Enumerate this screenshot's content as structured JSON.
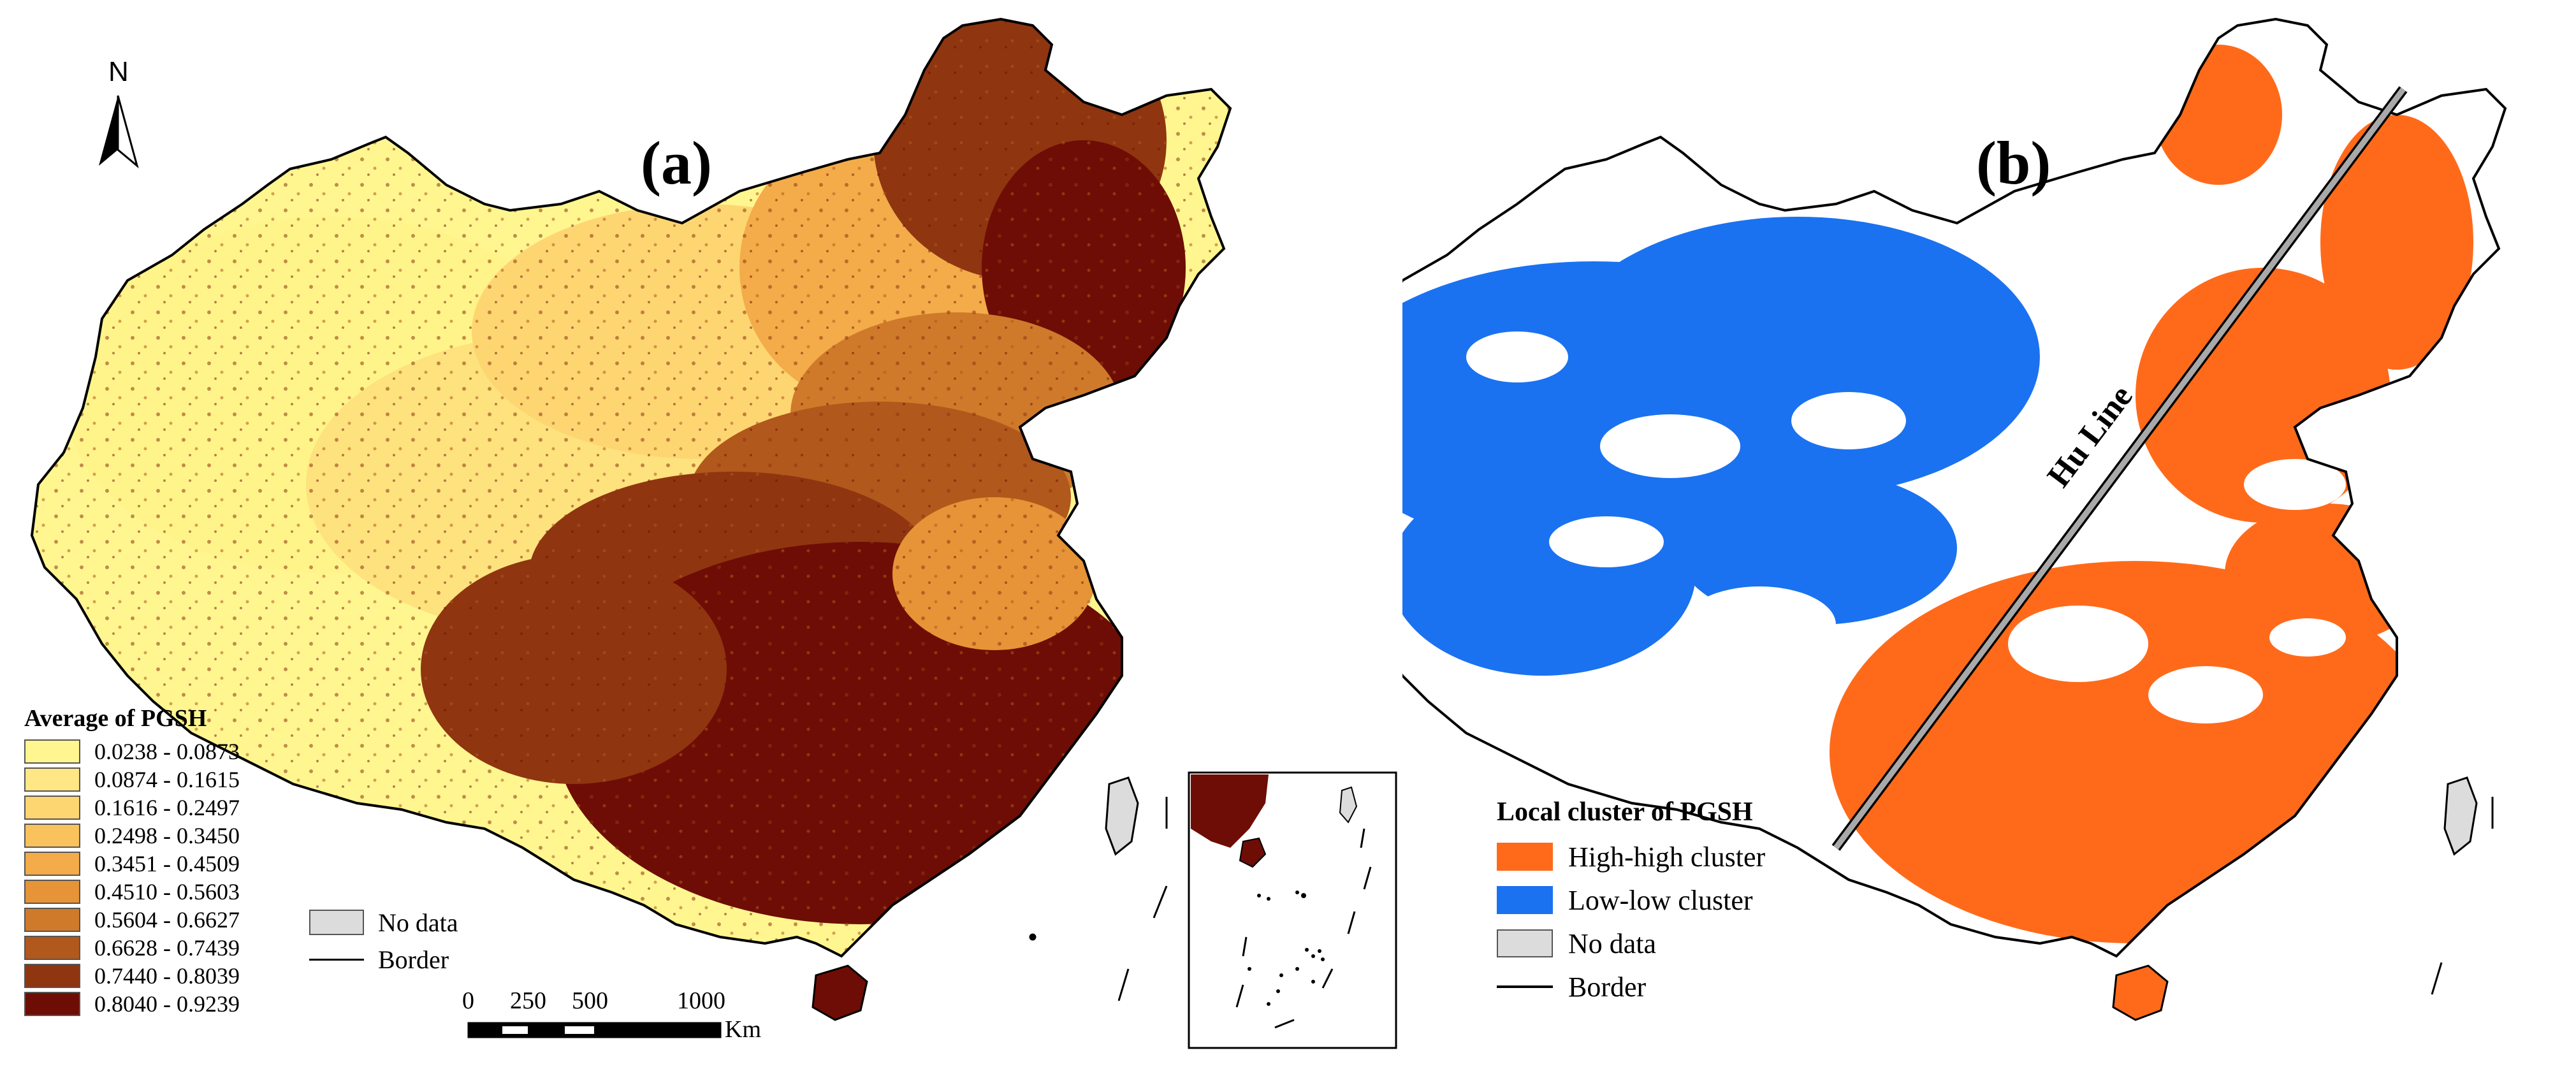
{
  "panel_a": {
    "label": "(a)",
    "north_label": "N",
    "legend": {
      "title": "Average of PGSH",
      "classes": [
        {
          "label": "0.0238 - 0.0873",
          "color": "#fff690"
        },
        {
          "label": "0.0874 - 0.1615",
          "color": "#fee784"
        },
        {
          "label": "0.1616 - 0.2497",
          "color": "#fdd672"
        },
        {
          "label": "0.2498 - 0.3450",
          "color": "#f9c25c"
        },
        {
          "label": "0.3451 - 0.4509",
          "color": "#f3ac49"
        },
        {
          "label": "0.4510 - 0.5603",
          "color": "#e69437"
        },
        {
          "label": "0.5604 - 0.6627",
          "color": "#cf7a2a"
        },
        {
          "label": "0.6628 - 0.7439",
          "color": "#b1581c"
        },
        {
          "label": "0.7440 - 0.8039",
          "color": "#8f3510"
        },
        {
          "label": "0.8040 - 0.9239",
          "color": "#6e0d05"
        }
      ]
    },
    "aux_legend": [
      {
        "label": "No data",
        "type": "box",
        "color": "#dcdcdc"
      },
      {
        "label": "Border",
        "type": "line",
        "color": "#000000"
      }
    ],
    "scale_bar": {
      "ticks": [
        "0",
        "250",
        "500",
        "1000"
      ],
      "unit": "Km"
    }
  },
  "panel_b": {
    "label": "(b)",
    "hu_line_label": "Hu Line",
    "legend": {
      "title": "Local cluster of PGSH",
      "items": [
        {
          "label": "High-high cluster",
          "type": "box",
          "color": "#ff6a1a"
        },
        {
          "label": "Low-low cluster",
          "type": "box",
          "color": "#1a72f0"
        },
        {
          "label": "No data",
          "type": "box",
          "color": "#dcdcdc"
        },
        {
          "label": "Border",
          "type": "line",
          "color": "#000000"
        }
      ]
    }
  }
}
